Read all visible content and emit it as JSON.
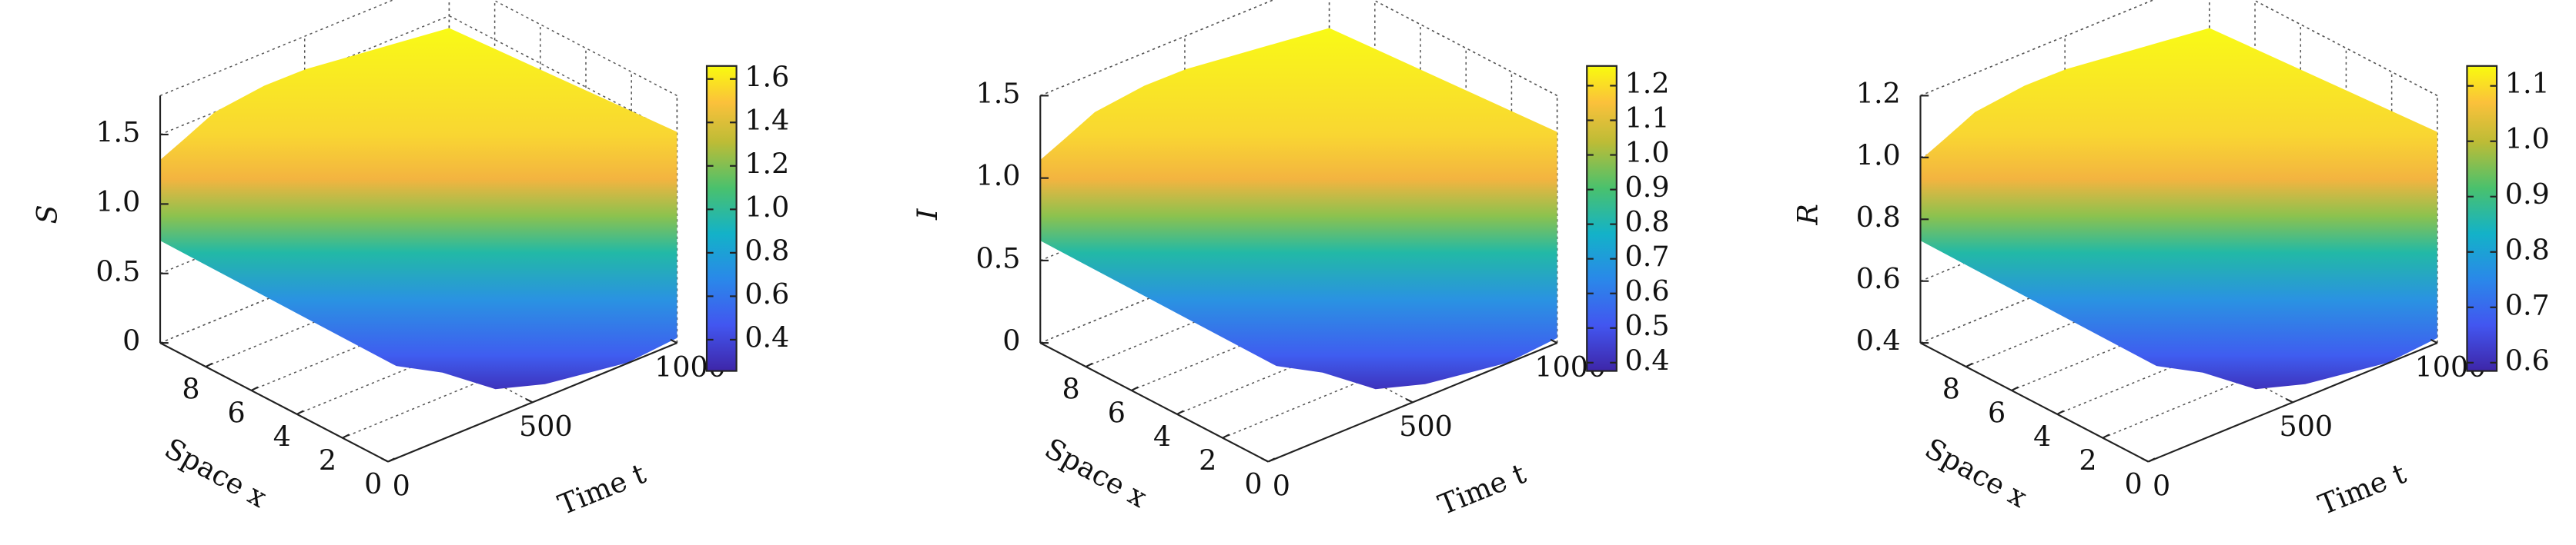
{
  "chart_data": [
    {
      "type": "surface",
      "zlabel": "S",
      "ylabel": "Space x",
      "xlabel": "Time t",
      "xlim": [
        0,
        1000
      ],
      "xticks": [
        0,
        500,
        1000
      ],
      "ylim": [
        0,
        10
      ],
      "yticks": [
        0,
        2,
        4,
        6,
        8
      ],
      "zlim": [
        0,
        1.78
      ],
      "zticks": [
        0,
        0.5,
        {
          "value": 1,
          "label": "1.0"
        },
        1.5
      ],
      "clim": [
        0.256,
        1.66
      ],
      "cticks": [
        0.4,
        0.6,
        0.8,
        {
          "value": 1,
          "label": "1.0"
        },
        1.2,
        1.4,
        1.6
      ],
      "colormap": "parula",
      "grid": true
    },
    {
      "type": "surface",
      "zlabel": "I",
      "ylabel": "Space x",
      "xlabel": "Time t",
      "xlim": [
        0,
        1000
      ],
      "xticks": [
        0,
        500,
        1000
      ],
      "ylim": [
        0,
        10
      ],
      "yticks": [
        0,
        2,
        4,
        6,
        8
      ],
      "zlim": [
        0,
        1.5
      ],
      "zticks": [
        0,
        0.5,
        {
          "value": 1,
          "label": "1.0"
        },
        1.5
      ],
      "clim": [
        0.376,
        1.257
      ],
      "cticks": [
        0.4,
        0.5,
        0.6,
        0.7,
        0.8,
        0.9,
        {
          "value": 1,
          "label": "1.0"
        },
        1.1,
        1.2
      ],
      "colormap": "parula",
      "grid": true
    },
    {
      "type": "surface",
      "zlabel": "R",
      "ylabel": "Space x",
      "xlabel": "Time t",
      "xlim": [
        0,
        1000
      ],
      "xticks": [
        0,
        500,
        1000
      ],
      "ylim": [
        0,
        10
      ],
      "yticks": [
        0,
        2,
        4,
        6,
        8
      ],
      "zlim": [
        0.4,
        1.2
      ],
      "zticks": [
        0.4,
        0.6,
        0.8,
        {
          "value": 1,
          "label": "1.0"
        },
        1.2
      ],
      "clim": [
        0.585,
        1.136
      ],
      "cticks": [
        0.6,
        0.7,
        0.8,
        0.9,
        {
          "value": 1,
          "label": "1.0"
        },
        1.1
      ],
      "colormap": "parula",
      "grid": true
    }
  ]
}
